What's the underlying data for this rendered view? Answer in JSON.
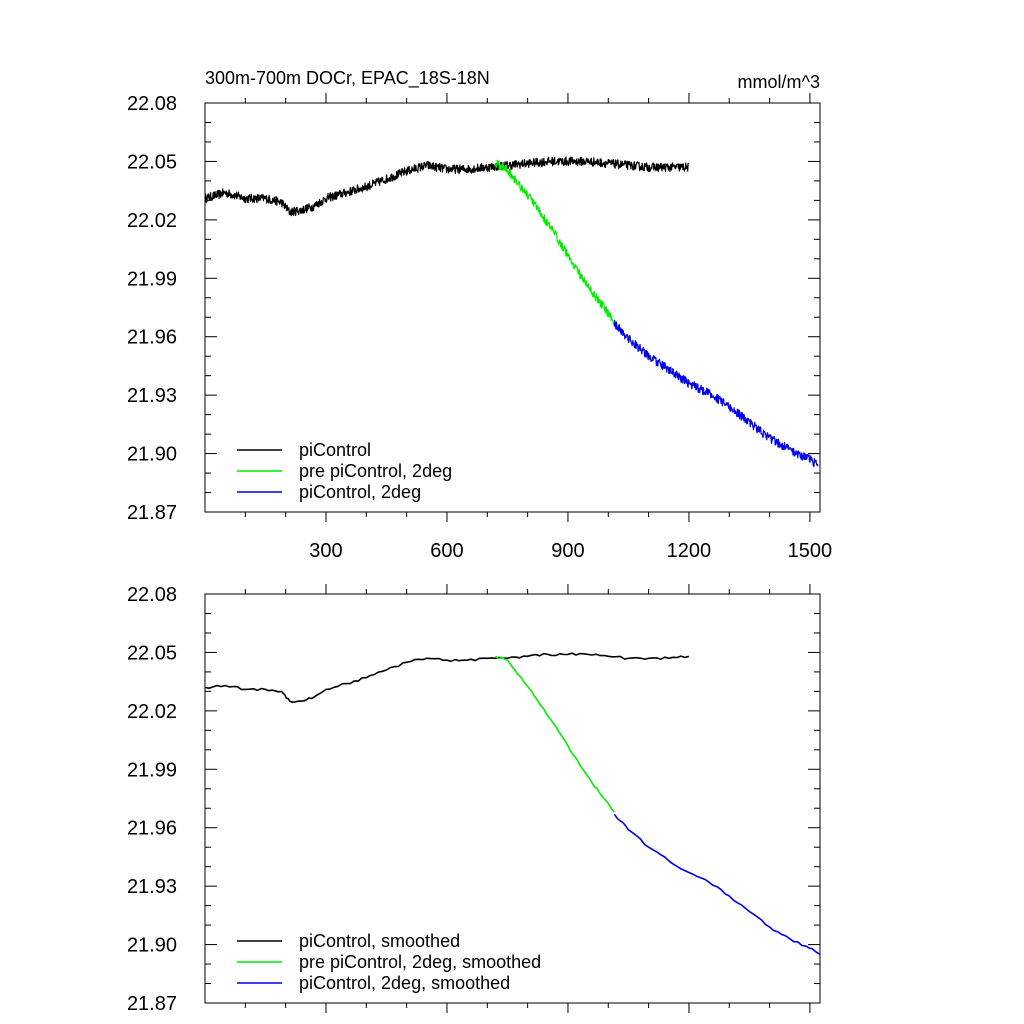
{
  "figure": {
    "title_left": "300m-700m DOCr, EPAC_18S-18N",
    "title_right": "mmol/m^3"
  },
  "chart_data": [
    {
      "type": "line",
      "xlim": [
        0,
        1525
      ],
      "ylim": [
        21.87,
        22.08
      ],
      "x_ticks": [
        300,
        600,
        900,
        1200,
        1500
      ],
      "x_tick_labels": [
        "300",
        "600",
        "900",
        "1200",
        "1500"
      ],
      "y_ticks": [
        21.87,
        21.9,
        21.93,
        21.96,
        21.99,
        22.02,
        22.05,
        22.08
      ],
      "y_tick_labels": [
        "21.87",
        "21.90",
        "21.93",
        "21.96",
        "21.99",
        "22.02",
        "22.05",
        "22.08"
      ],
      "grid": false,
      "legend_position": "bottom-left",
      "noisy": true,
      "series": [
        {
          "name": "piControl",
          "color": "#000000",
          "points": [
            [
              0,
              22.031
            ],
            [
              50,
              22.034
            ],
            [
              100,
              22.031
            ],
            [
              150,
              22.031
            ],
            [
              190,
              22.029
            ],
            [
              210,
              22.024
            ],
            [
              240,
              22.025
            ],
            [
              270,
              22.027
            ],
            [
              300,
              22.031
            ],
            [
              350,
              22.034
            ],
            [
              400,
              22.037
            ],
            [
              450,
              22.041
            ],
            [
              500,
              22.045
            ],
            [
              550,
              22.048
            ],
            [
              600,
              22.046
            ],
            [
              650,
              22.046
            ],
            [
              700,
              22.047
            ],
            [
              750,
              22.048
            ],
            [
              800,
              22.049
            ],
            [
              850,
              22.05
            ],
            [
              900,
              22.05
            ],
            [
              950,
              22.05
            ],
            [
              1000,
              22.049
            ],
            [
              1050,
              22.048
            ],
            [
              1100,
              22.047
            ],
            [
              1150,
              22.047
            ],
            [
              1200,
              22.047
            ]
          ]
        },
        {
          "name": "pre piControl, 2deg",
          "color": "#00ee00",
          "points": [
            [
              720,
              22.049
            ],
            [
              750,
              22.046
            ],
            [
              780,
              22.038
            ],
            [
              810,
              22.03
            ],
            [
              840,
              22.021
            ],
            [
              870,
              22.012
            ],
            [
              900,
              22.002
            ],
            [
              930,
              21.992
            ],
            [
              960,
              21.983
            ],
            [
              990,
              21.975
            ],
            [
              1015,
              21.968
            ]
          ]
        },
        {
          "name": "piControl, 2deg",
          "color": "#0000ee",
          "points": [
            [
              1015,
              21.967
            ],
            [
              1050,
              21.959
            ],
            [
              1100,
              21.95
            ],
            [
              1150,
              21.943
            ],
            [
              1200,
              21.936
            ],
            [
              1250,
              21.931
            ],
            [
              1300,
              21.924
            ],
            [
              1350,
              21.916
            ],
            [
              1400,
              21.908
            ],
            [
              1450,
              21.902
            ],
            [
              1500,
              21.897
            ],
            [
              1520,
              21.894
            ]
          ]
        }
      ]
    },
    {
      "type": "line",
      "xlim": [
        0,
        1525
      ],
      "ylim": [
        21.87,
        22.08
      ],
      "x_ticks": [
        300,
        600,
        900,
        1200,
        1500
      ],
      "x_tick_labels": [],
      "y_ticks": [
        21.87,
        21.9,
        21.93,
        21.96,
        21.99,
        22.02,
        22.05,
        22.08
      ],
      "y_tick_labels": [
        "21.87",
        "21.90",
        "21.93",
        "21.96",
        "21.99",
        "22.02",
        "22.05",
        "22.08"
      ],
      "grid": false,
      "legend_position": "bottom-left",
      "noisy": false,
      "series": [
        {
          "name": "piControl, smoothed",
          "color": "#000000",
          "points": [
            [
              0,
              22.032
            ],
            [
              50,
              22.033
            ],
            [
              100,
              22.031
            ],
            [
              150,
              22.031
            ],
            [
              190,
              22.03
            ],
            [
              210,
              22.025
            ],
            [
              240,
              22.025
            ],
            [
              270,
              22.027
            ],
            [
              300,
              22.031
            ],
            [
              350,
              22.034
            ],
            [
              400,
              22.037
            ],
            [
              450,
              22.041
            ],
            [
              500,
              22.045
            ],
            [
              550,
              22.047
            ],
            [
              600,
              22.046
            ],
            [
              650,
              22.046
            ],
            [
              700,
              22.047
            ],
            [
              750,
              22.047
            ],
            [
              800,
              22.048
            ],
            [
              850,
              22.049
            ],
            [
              900,
              22.049
            ],
            [
              950,
              22.049
            ],
            [
              1000,
              22.048
            ],
            [
              1050,
              22.047
            ],
            [
              1100,
              22.047
            ],
            [
              1150,
              22.047
            ],
            [
              1200,
              22.048
            ]
          ]
        },
        {
          "name": "pre piControl, 2deg, smoothed",
          "color": "#00ee00",
          "points": [
            [
              720,
              22.048
            ],
            [
              750,
              22.046
            ],
            [
              780,
              22.038
            ],
            [
              810,
              22.03
            ],
            [
              840,
              22.021
            ],
            [
              870,
              22.012
            ],
            [
              900,
              22.002
            ],
            [
              930,
              21.992
            ],
            [
              960,
              21.983
            ],
            [
              990,
              21.975
            ],
            [
              1015,
              21.968
            ]
          ]
        },
        {
          "name": "piControl, 2deg, smoothed",
          "color": "#0000ee",
          "points": [
            [
              1015,
              21.967
            ],
            [
              1050,
              21.959
            ],
            [
              1100,
              21.95
            ],
            [
              1150,
              21.943
            ],
            [
              1200,
              21.937
            ],
            [
              1250,
              21.932
            ],
            [
              1300,
              21.925
            ],
            [
              1350,
              21.917
            ],
            [
              1400,
              21.909
            ],
            [
              1450,
              21.903
            ],
            [
              1500,
              21.898
            ],
            [
              1525,
              21.895
            ]
          ]
        }
      ]
    }
  ]
}
